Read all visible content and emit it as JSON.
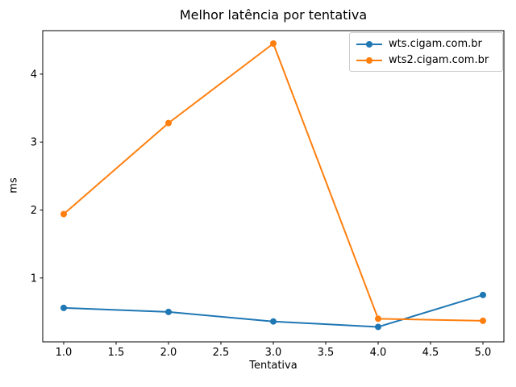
{
  "chart_data": {
    "type": "line",
    "title": "Melhor latência por tentativa",
    "xlabel": "Tentativa",
    "ylabel": "ms",
    "x": [
      1,
      2,
      3,
      4,
      5
    ],
    "series": [
      {
        "name": "wts.cigam.com.br",
        "color": "#1f77b4",
        "values": [
          0.56,
          0.5,
          0.36,
          0.28,
          0.75
        ]
      },
      {
        "name": "wts2.cigam.com.br",
        "color": "#ff7f0e",
        "values": [
          1.94,
          3.28,
          4.45,
          0.4,
          0.37
        ]
      }
    ],
    "xlim": [
      0.8,
      5.2
    ],
    "ylim": [
      0.06,
      4.64
    ],
    "xticks": {
      "values": [
        1.0,
        1.5,
        2.0,
        2.5,
        3.0,
        3.5,
        4.0,
        4.5,
        5.0
      ],
      "labels": [
        "1.0",
        "1.5",
        "2.0",
        "2.5",
        "3.0",
        "3.5",
        "4.0",
        "4.5",
        "5.0"
      ]
    },
    "yticks": {
      "values": [
        1,
        2,
        3,
        4
      ],
      "labels": [
        "1",
        "2",
        "3",
        "4"
      ]
    },
    "grid": false,
    "marker": "circle",
    "legend_position": "upper right",
    "background_color": "#ffffff",
    "axis_color": "#000000",
    "legend_border_color": "#cccccc"
  }
}
